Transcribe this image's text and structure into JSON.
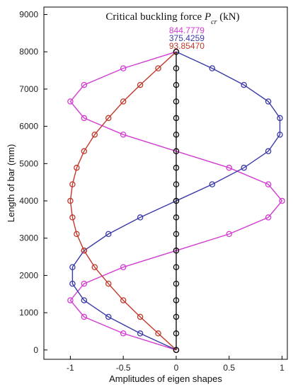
{
  "chart_data": {
    "type": "line",
    "title": {
      "text": "Critical buckling force ",
      "symbol": "P",
      "subscript": "cr",
      "unit": " (kN)"
    },
    "xlabel": "Amplitudes of eigen shapes",
    "ylabel": "Length of bar (mm)",
    "xlim": [
      -1.25,
      1.05
    ],
    "ylim": [
      -250,
      9200
    ],
    "xticks": [
      -1,
      -0.5,
      0,
      0.5,
      1
    ],
    "xtick_labels": [
      "-1",
      "-0.5",
      "0",
      "0.5",
      "1"
    ],
    "yticks": [
      0,
      1000,
      2000,
      3000,
      4000,
      5000,
      6000,
      7000,
      8000,
      9000
    ],
    "ytick_labels": [
      "0",
      "1000",
      "2000",
      "3000",
      "4000",
      "5000",
      "6000",
      "7000",
      "8000",
      "9000"
    ],
    "grid": false,
    "annotations": [
      {
        "text": "844.7779",
        "color": "#d23cd2"
      },
      {
        "text": "375.4259",
        "color": "#3a3aa8"
      },
      {
        "text": "93.85470",
        "color": "#c0392b"
      }
    ],
    "series": [
      {
        "color": "#d23cd2",
        "x": [
          0,
          -0.5,
          -0.87,
          -1.0,
          -0.87,
          -0.5,
          0,
          0.5,
          0.87,
          1.0,
          0.87,
          0.5,
          0,
          -0.5,
          -0.87,
          -1.0,
          -0.87,
          -0.5,
          0
        ],
        "y": [
          0,
          444,
          889,
          1333,
          1778,
          2222,
          2667,
          3111,
          3556,
          4000,
          4444,
          4889,
          5333,
          5778,
          6222,
          6667,
          7111,
          7556,
          8000
        ]
      },
      {
        "color": "#3a3aa8",
        "x": [
          0,
          -0.34,
          -0.64,
          -0.87,
          -0.98,
          -0.98,
          -0.87,
          -0.64,
          -0.34,
          0,
          0.34,
          0.64,
          0.87,
          0.98,
          0.98,
          0.87,
          0.64,
          0.34,
          0
        ],
        "y": [
          0,
          444,
          889,
          1333,
          1778,
          2222,
          2667,
          3111,
          3556,
          4000,
          4444,
          4889,
          5333,
          5778,
          6222,
          6667,
          7111,
          7556,
          8000
        ]
      },
      {
        "color": "#c0392b",
        "x": [
          0,
          -0.17,
          -0.34,
          -0.5,
          -0.64,
          -0.77,
          -0.87,
          -0.94,
          -0.98,
          -1.0,
          -0.98,
          -0.94,
          -0.87,
          -0.77,
          -0.64,
          -0.5,
          -0.34,
          -0.17,
          0
        ],
        "y": [
          0,
          444,
          889,
          1333,
          1778,
          2222,
          2667,
          3111,
          3556,
          4000,
          4444,
          4889,
          5333,
          5778,
          6222,
          6667,
          7111,
          7556,
          8000
        ]
      },
      {
        "color": "#111111",
        "x": [
          0,
          0,
          0,
          0,
          0,
          0,
          0,
          0,
          0,
          0,
          0,
          0,
          0,
          0,
          0,
          0,
          0,
          0,
          0
        ],
        "y": [
          0,
          444,
          889,
          1333,
          1778,
          2222,
          2667,
          3111,
          3556,
          4000,
          4444,
          4889,
          5333,
          5778,
          6222,
          6667,
          7111,
          7556,
          8000
        ]
      }
    ]
  }
}
